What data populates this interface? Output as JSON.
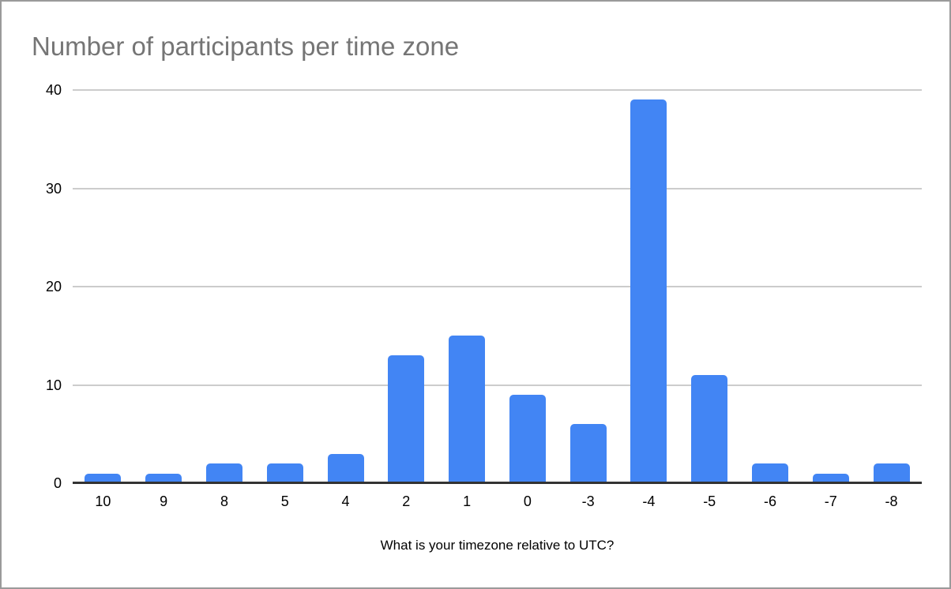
{
  "frame": {
    "border_color": "#9a9a9a",
    "background": "#ffffff"
  },
  "chart_data": {
    "type": "bar",
    "title": "Number of participants per time zone",
    "xlabel": "What is your timezone relative to UTC?",
    "ylabel": "",
    "categories": [
      "10",
      "9",
      "8",
      "5",
      "4",
      "2",
      "1",
      "0",
      "-3",
      "-4",
      "-5",
      "-6",
      "-7",
      "-8"
    ],
    "values": [
      1,
      1,
      2,
      2,
      3,
      13,
      15,
      9,
      6,
      39,
      11,
      2,
      1,
      2
    ],
    "ylim": [
      0,
      40
    ],
    "yticks": [
      0,
      10,
      20,
      30,
      40
    ],
    "grid": true,
    "legend_position": "none",
    "bar_color": "#4285F4",
    "title_color": "#757575",
    "axis_text_color": "#000000",
    "gridline_color": "#cccccc",
    "baseline_color": "#333333"
  }
}
